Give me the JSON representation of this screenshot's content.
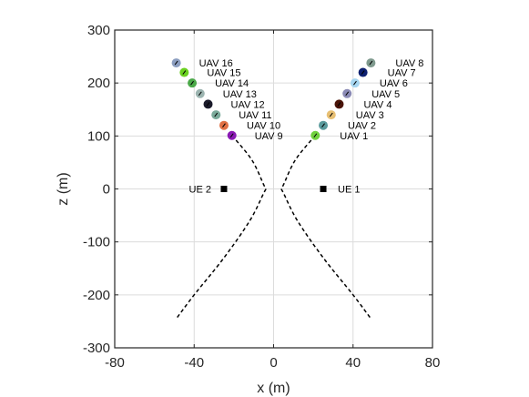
{
  "chart_data": {
    "type": "scatter",
    "title": "",
    "xlabel": "x (m)",
    "ylabel": "z (m)",
    "xlim": [
      -80,
      80
    ],
    "ylim": [
      -300,
      300
    ],
    "xticks": [
      -80,
      -40,
      0,
      40,
      80
    ],
    "yticks": [
      -300,
      -200,
      -100,
      0,
      100,
      200,
      300
    ],
    "xtick_labels": [
      "-80",
      "-40",
      "0",
      "40",
      "80"
    ],
    "ytick_labels": [
      "-300",
      "-200",
      "-100",
      "0",
      "100",
      "200",
      "300"
    ],
    "grid": true,
    "ues": [
      {
        "label": "UE 1",
        "x": 25,
        "z": 0
      },
      {
        "label": "UE 2",
        "x": -25,
        "z": 0
      }
    ],
    "uavs": [
      {
        "label": "UAV 1",
        "x": 21,
        "z": 101,
        "color": "#6fd13e"
      },
      {
        "label": "UAV 2",
        "x": 25,
        "z": 120,
        "color": "#5a9a9c"
      },
      {
        "label": "UAV 3",
        "x": 29,
        "z": 140,
        "color": "#e8c074"
      },
      {
        "label": "UAV 4",
        "x": 33,
        "z": 160,
        "color": "#4a1408"
      },
      {
        "label": "UAV 5",
        "x": 37,
        "z": 180,
        "color": "#8b8bb6"
      },
      {
        "label": "UAV 6",
        "x": 41,
        "z": 200,
        "color": "#a7d6f0"
      },
      {
        "label": "UAV 7",
        "x": 45,
        "z": 220,
        "color": "#0e2070"
      },
      {
        "label": "UAV 8",
        "x": 49,
        "z": 238,
        "color": "#7f9a8e"
      },
      {
        "label": "UAV 9",
        "x": -21,
        "z": 101,
        "color": "#8a1ab4"
      },
      {
        "label": "UAV 10",
        "x": -25,
        "z": 120,
        "color": "#e07044"
      },
      {
        "label": "UAV 11",
        "x": -29,
        "z": 140,
        "color": "#7aaa9a"
      },
      {
        "label": "UAV 12",
        "x": -33,
        "z": 160,
        "color": "#1a1a2a"
      },
      {
        "label": "UAV 13",
        "x": -37,
        "z": 180,
        "color": "#9cb4b0"
      },
      {
        "label": "UAV 14",
        "x": -41,
        "z": 200,
        "color": "#4aa848"
      },
      {
        "label": "UAV 15",
        "x": -45,
        "z": 220,
        "color": "#6ad020"
      },
      {
        "label": "UAV 16",
        "x": -49,
        "z": 238,
        "color": "#8c9ec0"
      }
    ],
    "trajectories": [
      {
        "name": "",
        "points": [
          [
            21,
            101
          ],
          [
            11,
            55
          ],
          [
            5,
            8
          ],
          [
            4,
            0
          ],
          [
            5,
            -8
          ],
          [
            12,
            -60
          ],
          [
            25,
            -130
          ],
          [
            40,
            -200
          ],
          [
            49,
            -245
          ]
        ]
      },
      {
        "name": "",
        "points": [
          [
            -21,
            101
          ],
          [
            -11,
            55
          ],
          [
            -5,
            8
          ],
          [
            -4,
            0
          ],
          [
            -5,
            -8
          ],
          [
            -12,
            -60
          ],
          [
            -25,
            -130
          ],
          [
            -40,
            -200
          ],
          [
            -49,
            -245
          ]
        ]
      }
    ]
  }
}
